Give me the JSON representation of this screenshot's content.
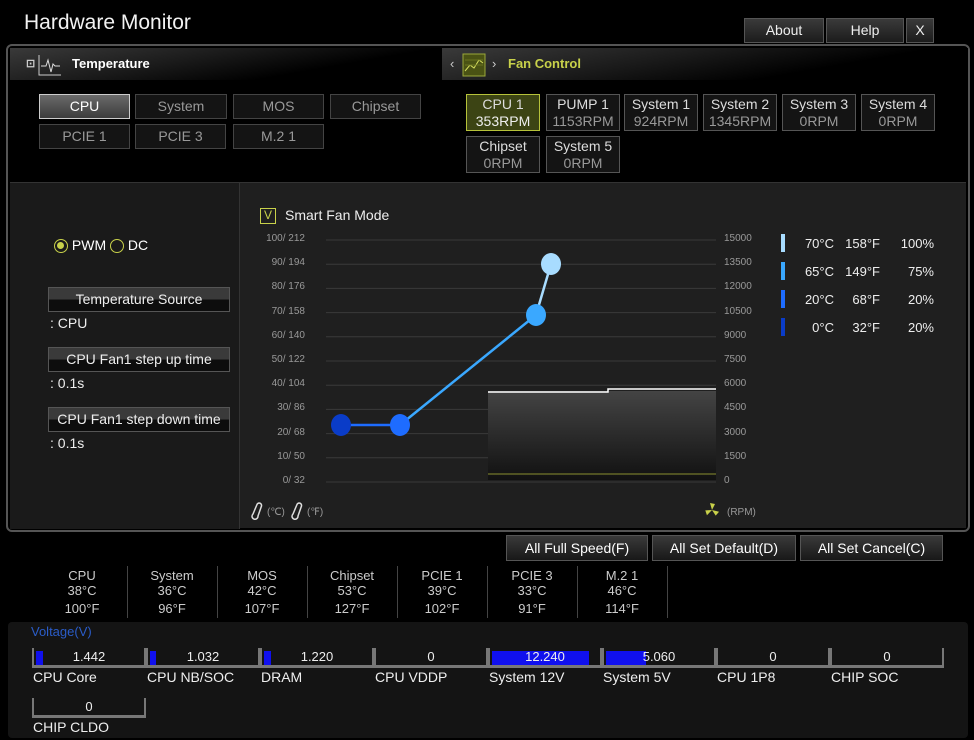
{
  "window": {
    "title": "Hardware Monitor",
    "buttons": [
      "About",
      "Help",
      "X"
    ]
  },
  "tabs": {
    "temperature": "Temperature",
    "fan_control": "Fan Control"
  },
  "temp_sources": [
    {
      "label": "CPU",
      "selected": true
    },
    {
      "label": "System"
    },
    {
      "label": "MOS"
    },
    {
      "label": "Chipset"
    },
    {
      "label": "PCIE 1"
    },
    {
      "label": "PCIE 3"
    },
    {
      "label": "M.2 1"
    }
  ],
  "fans": [
    {
      "name": "CPU 1",
      "rpm": "353RPM",
      "selected": true
    },
    {
      "name": "PUMP 1",
      "rpm": "1153RPM"
    },
    {
      "name": "System 1",
      "rpm": "924RPM"
    },
    {
      "name": "System 2",
      "rpm": "1345RPM"
    },
    {
      "name": "System 3",
      "rpm": "0RPM"
    },
    {
      "name": "System 4",
      "rpm": "0RPM"
    },
    {
      "name": "Chipset",
      "rpm": "0RPM"
    },
    {
      "name": "System 5",
      "rpm": "0RPM"
    }
  ],
  "mode": {
    "pwm": "PWM",
    "dc": "DC",
    "selected": "PWM"
  },
  "settings": [
    {
      "label": "Temperature Source",
      "value": ": CPU"
    },
    {
      "label": "CPU Fan1 step up time",
      "value": ": 0.1s"
    },
    {
      "label": "CPU Fan1 step down time",
      "value": ": 0.1s"
    }
  ],
  "smart_fan": {
    "label": "Smart Fan Mode",
    "checked": true,
    "check_glyph": "V"
  },
  "chart_data": {
    "type": "line",
    "y_left_ticks": [
      "100/ 212",
      "90/ 194",
      "80/ 176",
      "70/ 158",
      "60/ 140",
      "50/ 122",
      "40/ 104",
      "30/  86",
      "20/  68",
      "10/  50",
      "0/  32"
    ],
    "y_right_ticks": [
      "15000",
      "13500",
      "12000",
      "10500",
      "9000",
      "7500",
      "6000",
      "4500",
      "3000",
      "1500",
      "0"
    ],
    "left_units": [
      "(℃)",
      "(℉)"
    ],
    "right_unit": "(RPM)",
    "points": [
      {
        "c": "0°C",
        "f": "32°F",
        "pct": "20%",
        "color": "#0a3cc8"
      },
      {
        "c": "20°C",
        "f": "68°F",
        "pct": "20%",
        "color": "#1e6cff"
      },
      {
        "c": "65°C",
        "f": "149°F",
        "pct": "75%",
        "color": "#3aa8ff"
      },
      {
        "c": "70°C",
        "f": "158°F",
        "pct": "100%",
        "color": "#a8dcff"
      }
    ],
    "grid": true
  },
  "actions": [
    "All Full Speed(F)",
    "All Set Default(D)",
    "All Set Cancel(C)"
  ],
  "temps": [
    {
      "n": "CPU",
      "c": "38°C",
      "f": "100°F"
    },
    {
      "n": "System",
      "c": "36°C",
      "f": "96°F"
    },
    {
      "n": "MOS",
      "c": "42°C",
      "f": "107°F"
    },
    {
      "n": "Chipset",
      "c": "53°C",
      "f": "127°F"
    },
    {
      "n": "PCIE 1",
      "c": "39°C",
      "f": "102°F"
    },
    {
      "n": "PCIE 3",
      "c": "33°C",
      "f": "91°F"
    },
    {
      "n": "M.2 1",
      "c": "46°C",
      "f": "114°F"
    }
  ],
  "voltage": {
    "title": "Voltage(V)",
    "items": [
      {
        "n": "CPU Core",
        "v": "1.442",
        "fill": 6
      },
      {
        "n": "CPU NB/SOC",
        "v": "1.032",
        "fill": 5
      },
      {
        "n": "DRAM",
        "v": "1.220",
        "fill": 6
      },
      {
        "n": "CPU VDDP",
        "v": "0",
        "fill": 0
      },
      {
        "n": "System 12V",
        "v": "12.240",
        "fill": 88
      },
      {
        "n": "System 5V",
        "v": "5.060",
        "fill": 36
      },
      {
        "n": "CPU 1P8",
        "v": "0",
        "fill": 0
      },
      {
        "n": "CHIP SOC",
        "v": "0",
        "fill": 0
      },
      {
        "n": "CHIP CLDO",
        "v": "0",
        "fill": 0
      }
    ]
  },
  "colors": {
    "accent": "#c8d14a",
    "voltage_bar": "#1010ee",
    "voltage_title": "#2a5cc8"
  }
}
